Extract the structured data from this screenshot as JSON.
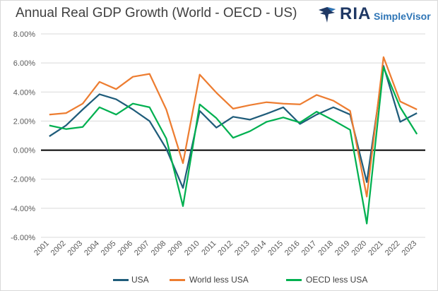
{
  "chart_data": {
    "type": "line",
    "title": "Annual Real GDP Growth (World - OECD - US)",
    "xlabel": "",
    "ylabel": "",
    "categories": [
      "2001",
      "2002",
      "2003",
      "2004",
      "2005",
      "2006",
      "2007",
      "2008",
      "2009",
      "2010",
      "2011",
      "2012",
      "2013",
      "2014",
      "2015",
      "2016",
      "2017",
      "2018",
      "2019",
      "2020",
      "2021",
      "2022",
      "2023"
    ],
    "ylim": [
      -6,
      8
    ],
    "yticks": [
      -6,
      -4,
      -2,
      0,
      2,
      4,
      6,
      8
    ],
    "ytick_labels": [
      "-6.00%",
      "-4.00%",
      "-2.00%",
      "0.00%",
      "2.00%",
      "4.00%",
      "6.00%",
      "8.00%"
    ],
    "grid": true,
    "legend_position": "bottom",
    "series": [
      {
        "name": "USA",
        "color": "#1f5c7a",
        "values": [
          0.95,
          1.7,
          2.8,
          3.85,
          3.5,
          2.8,
          2.0,
          0.1,
          -2.6,
          2.7,
          1.55,
          2.3,
          2.1,
          2.5,
          2.95,
          1.8,
          2.45,
          2.95,
          2.45,
          -2.2,
          5.8,
          1.95,
          2.55
        ]
      },
      {
        "name": "World less USA",
        "color": "#ed7d31",
        "values": [
          2.45,
          2.55,
          3.2,
          4.7,
          4.2,
          5.05,
          5.25,
          2.8,
          -0.9,
          5.2,
          3.95,
          2.85,
          3.1,
          3.3,
          3.2,
          3.15,
          3.8,
          3.4,
          2.7,
          -3.2,
          6.4,
          3.35,
          2.8
        ]
      },
      {
        "name": "OECD less USA",
        "color": "#00b050",
        "values": [
          1.7,
          1.45,
          1.6,
          2.95,
          2.45,
          3.2,
          2.95,
          0.8,
          -3.85,
          3.15,
          2.2,
          0.85,
          1.3,
          1.95,
          2.25,
          1.9,
          2.65,
          2.05,
          1.4,
          -5.05,
          5.7,
          2.95,
          1.1
        ]
      }
    ]
  },
  "logo": {
    "ria": "RIA",
    "brand": "SimpleVisor"
  }
}
